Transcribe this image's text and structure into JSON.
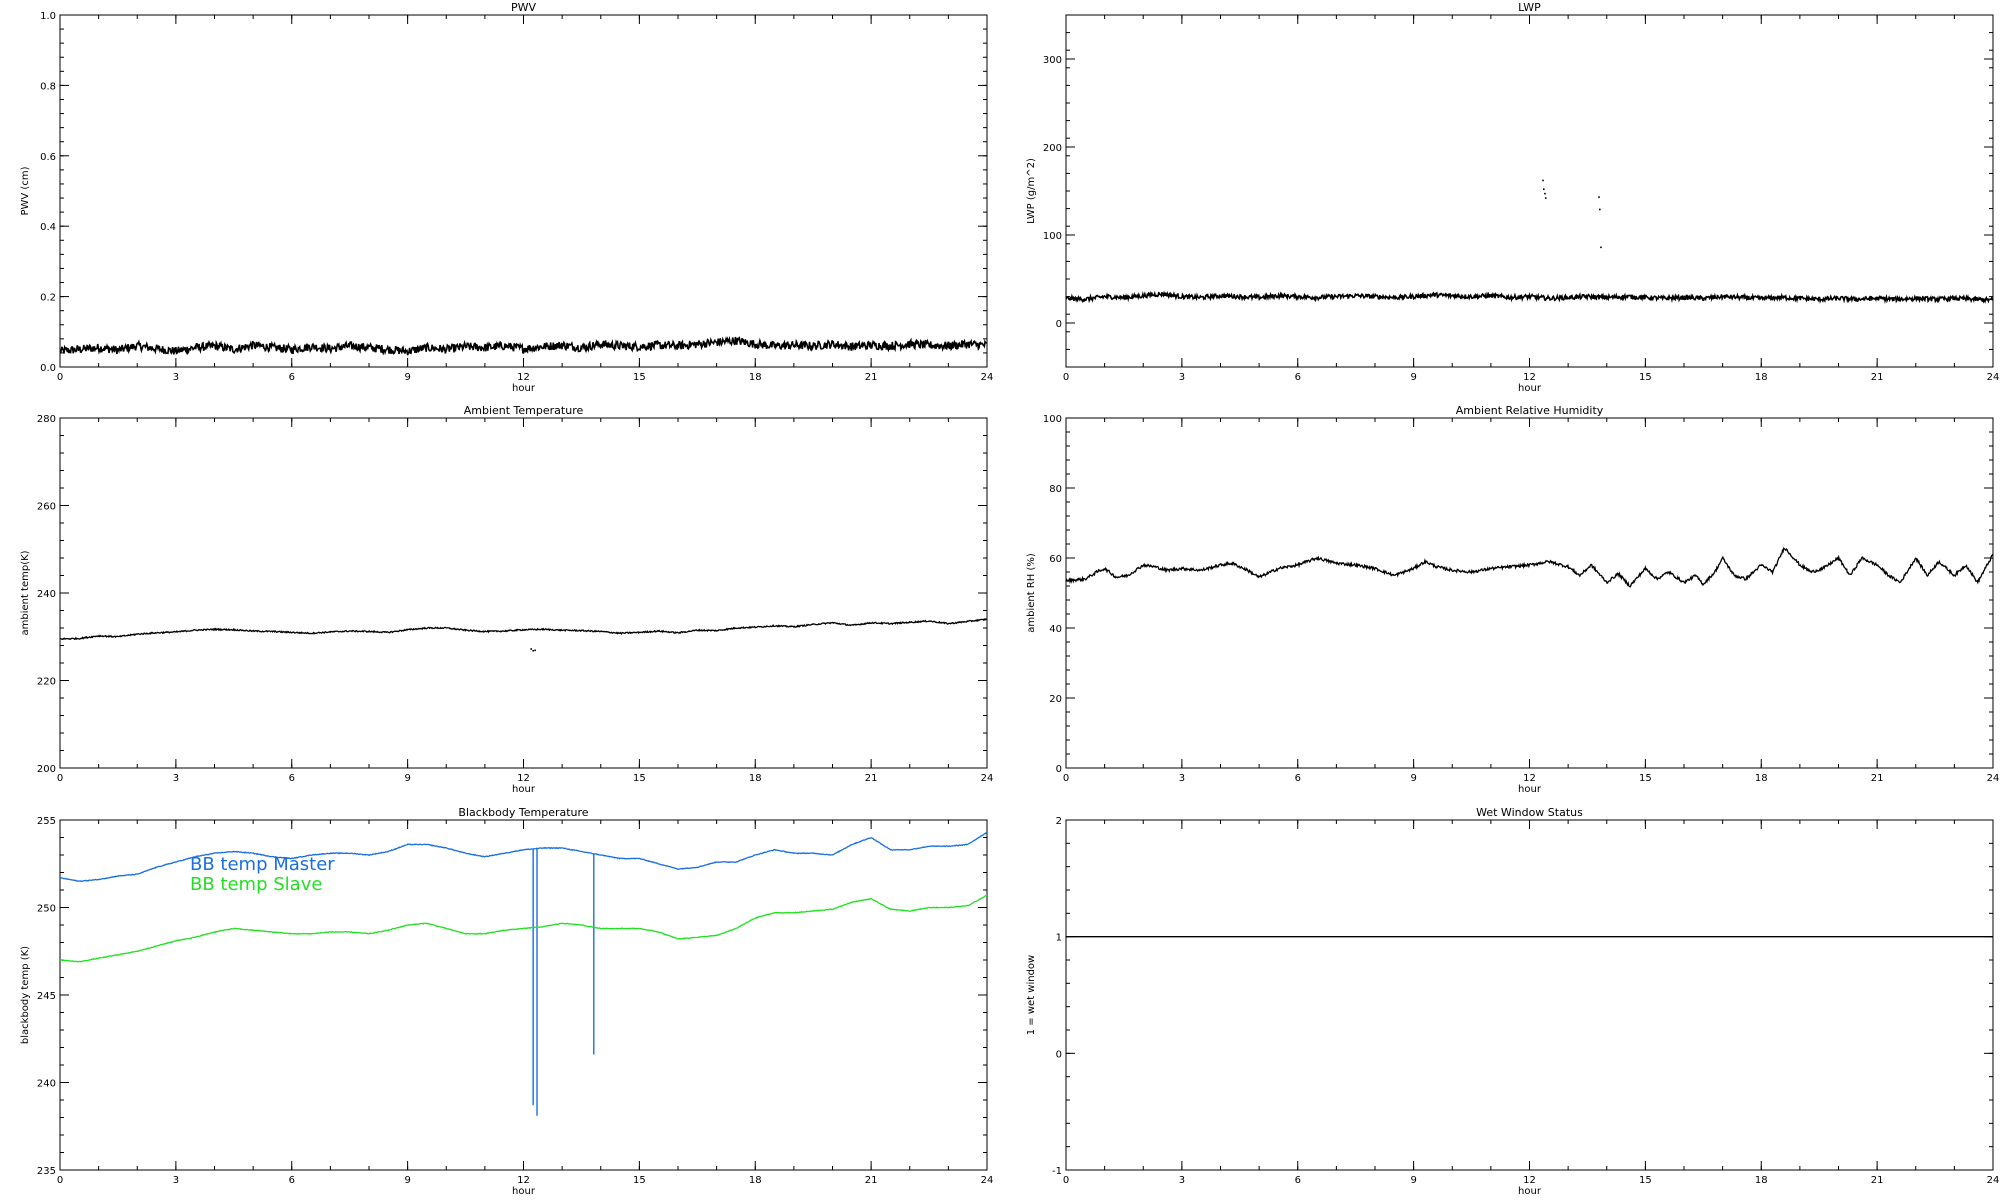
{
  "chart_data": [
    {
      "type": "line",
      "title": "PWV",
      "xlabel": "hour",
      "ylabel": "PWV (cm)",
      "xlim": [
        0,
        24
      ],
      "ylim": [
        0.0,
        1.0
      ],
      "xticks": [
        "0",
        "3",
        "6",
        "9",
        "12",
        "15",
        "18",
        "21",
        "24"
      ],
      "yticks": [
        "0.0",
        "0.2",
        "0.4",
        "0.6",
        "0.8",
        "1.0"
      ],
      "series": [
        {
          "color": "#000000",
          "noise": 0.012,
          "x": [
            0,
            0.5,
            1,
            1.5,
            2,
            2.5,
            3,
            3.5,
            4,
            4.5,
            5,
            5.5,
            6,
            6.5,
            7,
            7.5,
            8,
            8.5,
            9,
            9.5,
            10,
            10.5,
            11,
            11.5,
            12,
            12.5,
            13,
            13.5,
            14,
            14.5,
            15,
            15.5,
            16,
            16.5,
            17,
            17.5,
            18,
            18.5,
            19,
            19.5,
            20,
            20.5,
            21,
            21.5,
            22,
            22.5,
            23,
            23.5,
            24
          ],
          "y": [
            0.045,
            0.05,
            0.055,
            0.048,
            0.06,
            0.052,
            0.045,
            0.055,
            0.06,
            0.05,
            0.062,
            0.055,
            0.05,
            0.058,
            0.052,
            0.06,
            0.055,
            0.05,
            0.045,
            0.055,
            0.05,
            0.058,
            0.055,
            0.06,
            0.052,
            0.058,
            0.062,
            0.055,
            0.065,
            0.06,
            0.058,
            0.062,
            0.06,
            0.065,
            0.07,
            0.075,
            0.065,
            0.06,
            0.062,
            0.06,
            0.065,
            0.058,
            0.062,
            0.06,
            0.065,
            0.062,
            0.06,
            0.065,
            0.062
          ]
        }
      ]
    },
    {
      "type": "line",
      "title": "LWP",
      "xlabel": "hour",
      "ylabel": "LWP (g/m^2)",
      "xlim": [
        0,
        24
      ],
      "ylim": [
        -50,
        350
      ],
      "xticks": [
        "0",
        "3",
        "6",
        "9",
        "12",
        "15",
        "18",
        "21",
        "24"
      ],
      "yticks": [
        "0",
        "100",
        "200",
        "300"
      ],
      "series": [
        {
          "color": "#000000",
          "noise": 2.5,
          "x": [
            0,
            0.5,
            1,
            1.5,
            2,
            2.5,
            3,
            3.5,
            4,
            4.5,
            5,
            5.5,
            6,
            6.5,
            7,
            7.5,
            8,
            8.5,
            9,
            9.5,
            10,
            10.5,
            11,
            11.5,
            12,
            12.5,
            13,
            13.5,
            14,
            14.5,
            15,
            15.5,
            16,
            16.5,
            17,
            17.5,
            18,
            18.5,
            19,
            19.5,
            20,
            20.5,
            21,
            21.5,
            22,
            22.5,
            23,
            23.5,
            24
          ],
          "y": [
            28,
            27,
            30,
            29,
            31,
            33,
            30,
            29,
            31,
            30,
            29,
            31,
            30,
            29,
            30,
            31,
            30,
            29,
            30,
            32,
            31,
            30,
            31,
            29,
            30,
            28,
            29,
            30,
            29,
            30,
            29,
            28,
            29,
            28,
            30,
            29,
            28,
            29,
            28,
            27,
            28,
            27,
            28,
            27,
            28,
            27,
            28,
            27,
            26
          ]
        }
      ],
      "scatter": {
        "color": "#000000",
        "x": [
          12.35,
          12.37,
          12.4,
          12.42,
          13.8,
          13.82,
          13.85
        ],
        "y": [
          162,
          152,
          147,
          142,
          143,
          129,
          86
        ]
      }
    },
    {
      "type": "line",
      "title": "Ambient Temperature",
      "xlabel": "hour",
      "ylabel": "ambient temp(K)",
      "xlim": [
        0,
        24
      ],
      "ylim": [
        200,
        280
      ],
      "xticks": [
        "0",
        "3",
        "6",
        "9",
        "12",
        "15",
        "18",
        "21",
        "24"
      ],
      "yticks": [
        "200",
        "220",
        "240",
        "260",
        "280"
      ],
      "series": [
        {
          "color": "#000000",
          "noise": 0.15,
          "x": [
            0,
            0.5,
            1,
            1.5,
            2,
            2.5,
            3,
            3.5,
            4,
            4.5,
            5,
            5.5,
            6,
            6.5,
            7,
            7.5,
            8,
            8.5,
            9,
            9.5,
            10,
            10.5,
            11,
            11.5,
            12,
            12.5,
            13,
            13.5,
            14,
            14.5,
            15,
            15.5,
            16,
            16.5,
            17,
            17.5,
            18,
            18.5,
            19,
            19.5,
            20,
            20.5,
            21,
            21.5,
            22,
            22.5,
            23,
            23.5,
            24
          ],
          "y": [
            229.5,
            229.6,
            230.2,
            230.0,
            230.6,
            230.9,
            231.1,
            231.5,
            231.7,
            231.6,
            231.3,
            231.2,
            231.0,
            230.8,
            231.1,
            231.3,
            231.2,
            231.0,
            231.6,
            232.0,
            232.0,
            231.5,
            231.2,
            231.3,
            231.6,
            231.7,
            231.5,
            231.4,
            231.2,
            230.8,
            231.0,
            231.3,
            230.9,
            231.5,
            231.4,
            232.0,
            232.2,
            232.5,
            232.3,
            232.8,
            233.2,
            232.6,
            233.2,
            233.0,
            233.3,
            233.6,
            233.0,
            233.5,
            234.0
          ]
        }
      ],
      "scatter": {
        "color": "#000000",
        "x": [
          12.2,
          12.25,
          12.3
        ],
        "y": [
          227.2,
          226.8,
          226.9
        ]
      }
    },
    {
      "type": "line",
      "title": "Ambient Relative Humidity",
      "xlabel": "hour",
      "ylabel": "ambient RH (%)",
      "xlim": [
        0,
        24
      ],
      "ylim": [
        0,
        100
      ],
      "xticks": [
        "0",
        "3",
        "6",
        "9",
        "12",
        "15",
        "18",
        "21",
        "24"
      ],
      "yticks": [
        "0",
        "20",
        "40",
        "60",
        "80",
        "100"
      ],
      "series": [
        {
          "color": "#000000",
          "noise": 0.4,
          "x": [
            0,
            0.5,
            0.8,
            1.0,
            1.3,
            1.6,
            2.0,
            2.3,
            2.6,
            3.0,
            3.5,
            4.0,
            4.3,
            4.7,
            5.0,
            5.5,
            6.0,
            6.5,
            7.0,
            7.5,
            8.0,
            8.5,
            9.0,
            9.3,
            9.6,
            10.0,
            10.5,
            11.0,
            11.5,
            12.0,
            12.5,
            13.0,
            13.3,
            13.6,
            14.0,
            14.3,
            14.6,
            15.0,
            15.3,
            15.6,
            16.0,
            16.3,
            16.5,
            16.8,
            17.0,
            17.3,
            17.6,
            18.0,
            18.3,
            18.6,
            19.0,
            19.3,
            19.6,
            20.0,
            20.3,
            20.6,
            21.0,
            21.3,
            21.6,
            22.0,
            22.3,
            22.6,
            23.0,
            23.3,
            23.6,
            24.0
          ],
          "y": [
            53.5,
            54,
            56,
            57,
            54.5,
            55,
            58,
            57.5,
            56.5,
            57,
            56.5,
            58,
            58.5,
            56.5,
            54.5,
            57,
            58,
            60,
            58.5,
            58,
            57,
            55,
            57,
            59,
            57.5,
            56.5,
            56,
            57,
            57.5,
            58,
            59,
            57.5,
            55,
            58,
            53,
            55.5,
            52,
            57,
            54,
            56,
            53,
            55,
            52.5,
            56,
            60,
            55,
            54,
            58,
            56,
            63,
            58,
            56,
            57,
            60,
            55,
            60,
            58,
            55,
            53,
            60,
            55,
            59,
            55,
            58,
            53,
            61
          ]
        }
      ]
    },
    {
      "type": "line",
      "title": "Blackbody Temperature",
      "xlabel": "hour",
      "ylabel": "blackbody temp (K)",
      "xlim": [
        0,
        24
      ],
      "ylim": [
        235,
        255
      ],
      "xticks": [
        "0",
        "3",
        "6",
        "9",
        "12",
        "15",
        "18",
        "21",
        "24"
      ],
      "yticks": [
        "235",
        "240",
        "245",
        "250",
        "255"
      ],
      "legend": [
        "BB temp Master",
        "BB temp Slave"
      ],
      "series": [
        {
          "name": "BB temp Master",
          "color": "#1a6fe0",
          "noise": 0.02,
          "x": [
            0,
            0.5,
            1,
            1.5,
            2,
            2.5,
            3,
            3.5,
            4,
            4.5,
            5,
            5.5,
            6,
            6.5,
            7,
            7.5,
            8,
            8.5,
            9,
            9.5,
            10,
            10.5,
            11,
            11.5,
            12,
            12.5,
            13,
            13.5,
            14,
            14.5,
            15,
            15.5,
            16,
            16.5,
            17,
            17.5,
            18,
            18.5,
            19,
            19.5,
            20,
            20.5,
            21,
            21.5,
            22,
            22.5,
            23,
            23.5,
            24
          ],
          "y": [
            251.7,
            251.5,
            251.6,
            251.8,
            251.9,
            252.3,
            252.6,
            252.9,
            253.1,
            253.2,
            253.1,
            252.9,
            252.8,
            253.0,
            253.1,
            253.1,
            253.0,
            253.2,
            253.6,
            253.6,
            253.4,
            253.1,
            252.9,
            253.1,
            253.3,
            253.4,
            253.4,
            253.2,
            253.0,
            252.8,
            252.8,
            252.5,
            252.2,
            252.3,
            252.6,
            252.6,
            253.0,
            253.3,
            253.1,
            253.1,
            253.0,
            253.6,
            254.0,
            253.3,
            253.3,
            253.5,
            253.5,
            253.6,
            254.3
          ],
          "spikes": [
            {
              "x": 12.25,
              "y": 238.7
            },
            {
              "x": 12.35,
              "y": 238.1
            },
            {
              "x": 13.82,
              "y": 241.6
            }
          ]
        },
        {
          "name": "BB temp Slave",
          "color": "#22e022",
          "noise": 0.02,
          "x": [
            0,
            0.5,
            1,
            1.5,
            2,
            2.5,
            3,
            3.5,
            4,
            4.5,
            5,
            5.5,
            6,
            6.5,
            7,
            7.5,
            8,
            8.5,
            9,
            9.5,
            10,
            10.5,
            11,
            11.5,
            12,
            12.5,
            13,
            13.5,
            14,
            14.5,
            15,
            15.5,
            16,
            16.5,
            17,
            17.5,
            18,
            18.5,
            19,
            19.5,
            20,
            20.5,
            21,
            21.5,
            22,
            22.5,
            23,
            23.5,
            24
          ],
          "y": [
            247.0,
            246.9,
            247.1,
            247.3,
            247.5,
            247.8,
            248.1,
            248.3,
            248.6,
            248.8,
            248.7,
            248.6,
            248.5,
            248.5,
            248.6,
            248.6,
            248.5,
            248.7,
            249.0,
            249.1,
            248.8,
            248.5,
            248.5,
            248.7,
            248.8,
            248.9,
            249.1,
            249.0,
            248.8,
            248.8,
            248.8,
            248.6,
            248.2,
            248.3,
            248.4,
            248.8,
            249.4,
            249.7,
            249.7,
            249.8,
            249.9,
            250.3,
            250.5,
            249.9,
            249.8,
            250.0,
            250.0,
            250.1,
            250.7
          ]
        }
      ]
    },
    {
      "type": "line",
      "title": "Wet Window Status",
      "xlabel": "hour",
      "ylabel": "1 = wet window",
      "xlim": [
        0,
        24
      ],
      "ylim": [
        -1,
        2
      ],
      "xticks": [
        "0",
        "3",
        "6",
        "9",
        "12",
        "15",
        "18",
        "21",
        "24"
      ],
      "yticks": [
        "-1",
        "0",
        "1",
        "2"
      ],
      "series": [
        {
          "color": "#000000",
          "noise": 0,
          "x": [
            0,
            24
          ],
          "y": [
            1,
            1
          ]
        }
      ]
    }
  ]
}
